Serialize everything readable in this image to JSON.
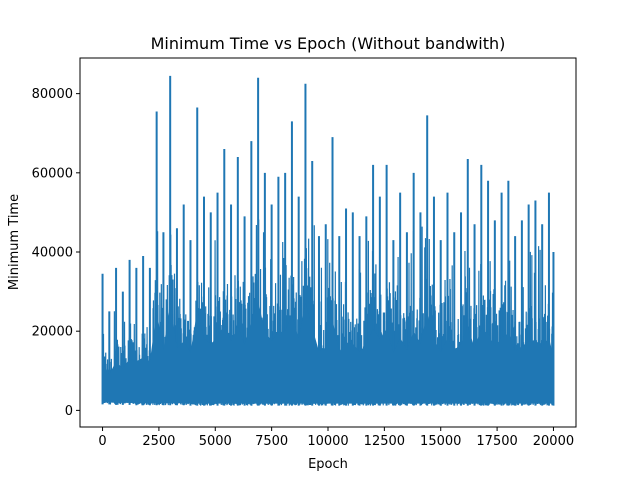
{
  "chart_data": {
    "type": "line",
    "title": "Minimum Time vs Epoch (Without bandwith)",
    "xlabel": "Epoch",
    "ylabel": "Minimum Time",
    "xlim": [
      -1000,
      21000
    ],
    "ylim": [
      -4200,
      89000
    ],
    "xticks": [
      0,
      2500,
      5000,
      7500,
      10000,
      12500,
      15000,
      17500,
      20000
    ],
    "xtick_labels": [
      "0",
      "2500",
      "5000",
      "7500",
      "10000",
      "12500",
      "15000",
      "17500",
      "20000"
    ],
    "yticks": [
      0,
      20000,
      40000,
      60000,
      80000
    ],
    "ytick_labels": [
      "0",
      "20000",
      "40000",
      "60000",
      "80000"
    ],
    "grid": false,
    "legend": false,
    "series_color": "#1f77b4",
    "series": [
      {
        "x": [
          0,
          300,
          600,
          900,
          1200,
          1500,
          1800,
          2100,
          2400,
          2700,
          3000,
          3300,
          3600,
          3900,
          4200,
          4500,
          4800,
          5100,
          5400,
          5700,
          6000,
          6300,
          6600,
          6900,
          7200,
          7500,
          7800,
          8100,
          8400,
          8700,
          9000,
          9300,
          9600,
          9900,
          10200,
          10500,
          10800,
          11100,
          11400,
          11700,
          12000,
          12300,
          12600,
          12900,
          13200,
          13500,
          13800,
          14100,
          14400,
          14700,
          15000,
          15300,
          15600,
          15900,
          16200,
          16500,
          16800,
          17100,
          17400,
          17700,
          18000,
          18300,
          18600,
          18900,
          19200,
          19500,
          19800,
          20000
        ],
        "y": [
          34500,
          25000,
          36000,
          30000,
          38000,
          36000,
          39000,
          36000,
          75500,
          45000,
          84500,
          46000,
          52000,
          43000,
          76500,
          54000,
          50000,
          55000,
          66000,
          52000,
          64000,
          49000,
          68000,
          84000,
          60000,
          52000,
          59000,
          60000,
          73000,
          54000,
          82500,
          63000,
          44000,
          47000,
          69000,
          44000,
          51000,
          50000,
          44000,
          49000,
          62000,
          54000,
          62000,
          43000,
          55000,
          45000,
          60000,
          50000,
          74500,
          54000,
          43000,
          55000,
          45000,
          50000,
          63500,
          47000,
          62000,
          58000,
          48000,
          55000,
          58000,
          44000,
          48000,
          52000,
          53000,
          47000,
          55000,
          40000
        ],
        "baseline": [
          1500,
          1500,
          1400,
          1400,
          1400,
          1300,
          1300,
          1300,
          1300,
          1300,
          1300,
          1300,
          1300,
          1200,
          1200,
          1200,
          1200,
          1200,
          1200,
          1200,
          1200,
          1200,
          1200,
          1200,
          1200,
          1200,
          1200,
          1200,
          1200,
          1200,
          1200,
          1200,
          1200,
          1200,
          1200,
          1200,
          1200,
          1200,
          1200,
          1200,
          1200,
          1200,
          1200,
          1200,
          1200,
          1200,
          1200,
          1200,
          1200,
          1200,
          1200,
          1200,
          1200,
          1200,
          1200,
          1200,
          1200,
          1200,
          1200,
          1200,
          1200,
          1200,
          1200,
          1200,
          1200,
          1200,
          1200,
          1200
        ]
      }
    ]
  }
}
